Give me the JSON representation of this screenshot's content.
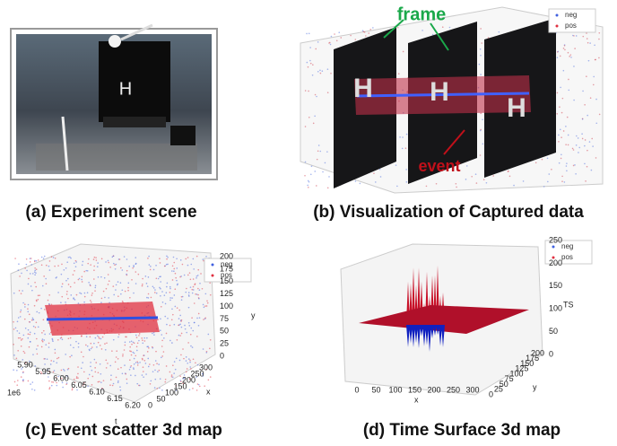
{
  "panels": [
    {
      "caption": "(a) Experiment scene",
      "sign": "H"
    },
    {
      "caption": "(b) Visualization of Captured data",
      "annotations": [
        "frame",
        "event"
      ],
      "legend": [
        "neg",
        "pos"
      ],
      "frame_letter": "H"
    },
    {
      "caption": "(c) Event scatter 3d map",
      "legend": [
        "neg",
        "pos"
      ],
      "t_label": "t",
      "t_offset": "1e6",
      "x_label": "x",
      "y_label": "y",
      "t_ticks": [
        "5.90",
        "5.95",
        "6.00",
        "6.05",
        "6.10",
        "6.15",
        "6.20"
      ],
      "x_ticks": [
        "0",
        "50",
        "100",
        "150",
        "200",
        "250",
        "300"
      ],
      "y_ticks": [
        "0",
        "25",
        "50",
        "75",
        "100",
        "125",
        "150",
        "175",
        "200"
      ]
    },
    {
      "caption": "(d) Time Surface 3d map",
      "legend": [
        "neg",
        "pos"
      ],
      "x_label": "x",
      "y_label": "y",
      "z_label": "TS",
      "x_ticks": [
        "0",
        "50",
        "100",
        "150",
        "200",
        "250",
        "300"
      ],
      "y_ticks": [
        "0",
        "25",
        "50",
        "75",
        "100",
        "125",
        "150",
        "175",
        "200"
      ],
      "z_ticks": [
        "0",
        "50",
        "100",
        "150",
        "200",
        "250"
      ]
    }
  ]
}
